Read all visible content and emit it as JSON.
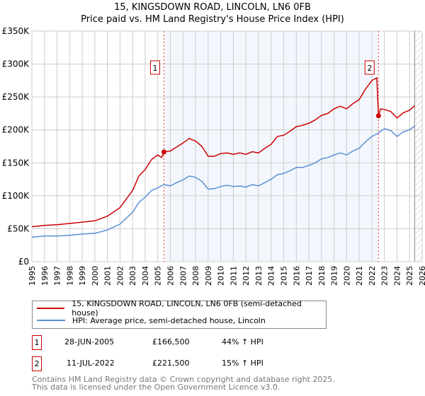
{
  "chart_data": {
    "type": "line",
    "title": "15, KINGSDOWN ROAD, LINCOLN, LN6 0FB",
    "subtitle": "Price paid vs. HM Land Registry's House Price Index (HPI)",
    "xlim": [
      1995,
      2026
    ],
    "ylim": [
      0,
      350000
    ],
    "x_ticks": [
      "1995",
      "1996",
      "1997",
      "1998",
      "1999",
      "2000",
      "2001",
      "2002",
      "2003",
      "2004",
      "2005",
      "2006",
      "2007",
      "2008",
      "2009",
      "2010",
      "2011",
      "2012",
      "2013",
      "2014",
      "2015",
      "2016",
      "2017",
      "2018",
      "2019",
      "2020",
      "2021",
      "2022",
      "2023",
      "2024",
      "2025",
      "2026"
    ],
    "y_ticks": [
      {
        "v": 0,
        "label": "£0"
      },
      {
        "v": 50000,
        "label": "£50K"
      },
      {
        "v": 100000,
        "label": "£100K"
      },
      {
        "v": 150000,
        "label": "£150K"
      },
      {
        "v": 200000,
        "label": "£200K"
      },
      {
        "v": 250000,
        "label": "£250K"
      },
      {
        "v": 300000,
        "label": "£300K"
      },
      {
        "v": 350000,
        "label": "£350K"
      }
    ],
    "grid": true,
    "shaded_range": [
      2005.49,
      2022.53
    ],
    "forecast_start": 2025.4,
    "series": [
      {
        "name": "15, KINGSDOWN ROAD, LINCOLN, LN6 0FB (semi-detached house)",
        "color": "#cc0000",
        "x": [
          1995,
          1996,
          1997,
          1998,
          1999,
          2000,
          2001,
          2002,
          2003,
          2003.5,
          2004,
          2004.5,
          2005,
          2005.3,
          2005.49,
          2006,
          2006.5,
          2007,
          2007.5,
          2008,
          2008.5,
          2009,
          2009.5,
          2010,
          2010.5,
          2011,
          2011.5,
          2012,
          2012.5,
          2013,
          2013.5,
          2014,
          2014.5,
          2015,
          2015.5,
          2016,
          2016.5,
          2017,
          2017.5,
          2018,
          2018.5,
          2019,
          2019.5,
          2020,
          2020.5,
          2021,
          2021.5,
          2022,
          2022.4,
          2022.53,
          2022.7,
          2023,
          2023.5,
          2024,
          2024.5,
          2025,
          2025.4
        ],
        "y": [
          53000,
          55000,
          56000,
          58000,
          60000,
          62000,
          69000,
          82000,
          108000,
          130000,
          140000,
          155000,
          162000,
          158000,
          166500,
          168000,
          174000,
          180000,
          187000,
          183000,
          175000,
          160000,
          160000,
          164000,
          165000,
          163000,
          165000,
          163000,
          167000,
          165000,
          172000,
          178000,
          190000,
          192000,
          198000,
          205000,
          207000,
          210000,
          215000,
          222000,
          225000,
          232000,
          236000,
          232000,
          240000,
          246000,
          262000,
          275000,
          279000,
          221500,
          232000,
          231000,
          228000,
          218000,
          226000,
          230000,
          237000
        ]
      },
      {
        "name": "HPI: Average price, semi-detached house, Lincoln",
        "color": "#5b8fd4",
        "x": [
          1995,
          1996,
          1997,
          1998,
          1999,
          2000,
          2001,
          2002,
          2003,
          2003.5,
          2004,
          2004.5,
          2005,
          2005.5,
          2006,
          2006.5,
          2007,
          2007.5,
          2008,
          2008.5,
          2009,
          2009.5,
          2010,
          2010.5,
          2011,
          2011.5,
          2012,
          2012.5,
          2013,
          2013.5,
          2014,
          2014.5,
          2015,
          2015.5,
          2016,
          2016.5,
          2017,
          2017.5,
          2018,
          2018.5,
          2019,
          2019.5,
          2020,
          2020.5,
          2021,
          2021.5,
          2022,
          2022.5,
          2023,
          2023.5,
          2024,
          2024.5,
          2025,
          2025.4
        ],
        "y": [
          37000,
          39000,
          39000,
          40000,
          42000,
          43000,
          48000,
          57000,
          75000,
          90000,
          98000,
          108000,
          112000,
          117000,
          115000,
          120000,
          124000,
          130000,
          128000,
          122000,
          110000,
          111000,
          114000,
          116000,
          114000,
          115000,
          113000,
          117000,
          115000,
          120000,
          125000,
          132000,
          134000,
          138000,
          143000,
          143000,
          146000,
          150000,
          156000,
          158000,
          162000,
          165000,
          162000,
          168000,
          172000,
          182000,
          190000,
          195000,
          202000,
          199000,
          190000,
          197000,
          200000,
          206000
        ]
      }
    ],
    "annotations": [
      {
        "label": "1",
        "x": 2005.49,
        "y": 166500
      },
      {
        "label": "2",
        "x": 2022.53,
        "y": 221500
      }
    ]
  },
  "legend": {
    "items": [
      {
        "label": "15, KINGSDOWN ROAD, LINCOLN, LN6 0FB (semi-detached house)",
        "color": "#cc0000"
      },
      {
        "label": "HPI: Average price, semi-detached house, Lincoln",
        "color": "#5b8fd4"
      }
    ]
  },
  "transactions": [
    {
      "num": "1",
      "date": "28-JUN-2005",
      "price": "£166,500",
      "hpi": "44% ↑ HPI"
    },
    {
      "num": "2",
      "date": "11-JUL-2022",
      "price": "£221,500",
      "hpi": "15% ↑ HPI"
    }
  ],
  "footer": {
    "line1": "Contains HM Land Registry data © Crown copyright and database right 2025.",
    "line2": "This data is licensed under the Open Government Licence v3.0."
  }
}
